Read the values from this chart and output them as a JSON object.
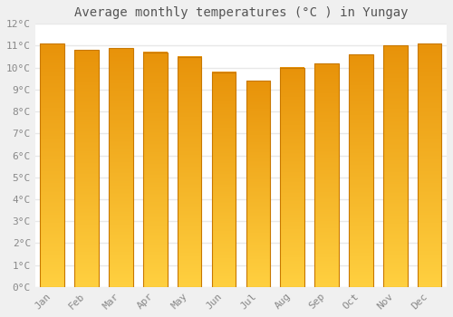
{
  "title": "Average monthly temperatures (°C ) in Yungay",
  "months": [
    "Jan",
    "Feb",
    "Mar",
    "Apr",
    "May",
    "Jun",
    "Jul",
    "Aug",
    "Sep",
    "Oct",
    "Nov",
    "Dec"
  ],
  "values": [
    11.1,
    10.8,
    10.9,
    10.7,
    10.5,
    9.8,
    9.4,
    10.0,
    10.2,
    10.6,
    11.0,
    11.1
  ],
  "bar_color_top": "#E8930A",
  "bar_color_bottom": "#FFD040",
  "bar_edge_color": "#C87800",
  "ylim": [
    0,
    12
  ],
  "ytick_step": 1,
  "background_color": "#f0f0f0",
  "plot_bg_color": "#ffffff",
  "grid_color": "#e8e8e8",
  "title_fontsize": 10,
  "tick_fontsize": 8,
  "font_family": "monospace",
  "bar_width": 0.7
}
